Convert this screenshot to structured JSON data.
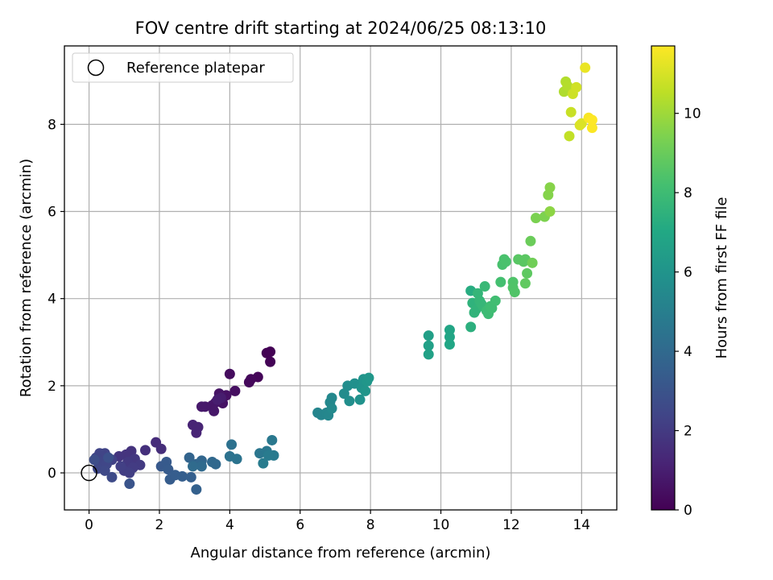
{
  "chart_data": {
    "type": "scatter",
    "title": "FOV centre drift starting at 2024/06/25 08:13:10",
    "xlabel": "Angular distance from reference (arcmin)",
    "ylabel": "Rotation from reference (arcmin)",
    "xlim": [
      -0.7,
      15.0
    ],
    "ylim": [
      -0.85,
      9.8
    ],
    "xticks": [
      "0",
      "2",
      "4",
      "6",
      "8",
      "10",
      "12",
      "14"
    ],
    "yticks": [
      "0",
      "2",
      "4",
      "6",
      "8"
    ],
    "grid": true,
    "legend": {
      "placement": "top-left",
      "entries": [
        "Reference platepar"
      ]
    },
    "reference_point": {
      "x": 0,
      "y": 0
    },
    "colorbar": {
      "label": "Hours from first FF file",
      "colormap": "viridis",
      "range": [
        0,
        11.7
      ],
      "ticks": [
        "0",
        "2",
        "4",
        "6",
        "8",
        "10"
      ]
    },
    "series": [
      {
        "points": [
          [
            5.05,
            2.75
          ],
          [
            5.15,
            2.78
          ],
          [
            5.15,
            2.55
          ],
          [
            4.8,
            2.2
          ],
          [
            4.6,
            2.15
          ],
          [
            4.55,
            2.08
          ],
          [
            4.0,
            2.27
          ],
          [
            4.15,
            1.88
          ],
          [
            3.9,
            1.78
          ],
          [
            3.8,
            1.6
          ],
          [
            3.7,
            1.82
          ],
          [
            3.6,
            1.62
          ],
          [
            3.5,
            1.55
          ],
          [
            3.55,
            1.42
          ],
          [
            3.3,
            1.52
          ],
          [
            3.2,
            1.52
          ],
          [
            3.75,
            1.72
          ],
          [
            3.65,
            1.68
          ],
          [
            2.95,
            1.1
          ],
          [
            3.1,
            1.05
          ],
          [
            3.05,
            0.92
          ],
          [
            1.9,
            0.7
          ],
          [
            2.05,
            0.55
          ],
          [
            1.6,
            0.52
          ],
          [
            1.2,
            0.5
          ],
          [
            1.05,
            0.42
          ],
          [
            0.85,
            0.38
          ],
          [
            1.3,
            0.32
          ],
          [
            1.1,
            0.25
          ],
          [
            1.45,
            0.18
          ],
          [
            1.25,
            0.12
          ],
          [
            1.0,
            0.05
          ],
          [
            1.15,
            0.0
          ],
          [
            0.9,
            0.15
          ],
          [
            0.65,
            0.3
          ],
          [
            0.45,
            0.45
          ],
          [
            0.3,
            0.45
          ],
          [
            0.2,
            0.35
          ],
          [
            0.35,
            0.25
          ],
          [
            0.5,
            0.2
          ],
          [
            0.25,
            0.1
          ],
          [
            0.45,
            0.05
          ],
          [
            0.65,
            -0.1
          ],
          [
            0.15,
            0.3
          ],
          [
            0.55,
            0.35
          ],
          [
            1.15,
            -0.25
          ],
          [
            2.05,
            0.15
          ],
          [
            2.2,
            0.25
          ],
          [
            2.25,
            0.08
          ],
          [
            2.3,
            -0.15
          ],
          [
            2.45,
            -0.05
          ],
          [
            2.65,
            -0.08
          ],
          [
            2.9,
            -0.1
          ],
          [
            3.05,
            -0.38
          ],
          [
            2.85,
            0.35
          ],
          [
            3.05,
            0.2
          ],
          [
            3.2,
            0.28
          ],
          [
            3.5,
            0.25
          ],
          [
            3.6,
            0.2
          ],
          [
            3.2,
            0.15
          ],
          [
            2.95,
            0.15
          ],
          [
            4.05,
            0.65
          ],
          [
            4.0,
            0.38
          ],
          [
            4.2,
            0.32
          ],
          [
            4.85,
            0.45
          ],
          [
            5.05,
            0.5
          ],
          [
            5.2,
            0.75
          ],
          [
            5.25,
            0.4
          ],
          [
            5.1,
            0.4
          ],
          [
            4.95,
            0.22
          ],
          [
            6.5,
            1.38
          ],
          [
            6.6,
            1.33
          ],
          [
            6.75,
            1.38
          ],
          [
            6.8,
            1.32
          ],
          [
            6.85,
            1.62
          ],
          [
            6.9,
            1.72
          ],
          [
            6.9,
            1.48
          ],
          [
            7.25,
            1.82
          ],
          [
            7.35,
            2.0
          ],
          [
            7.4,
            1.65
          ],
          [
            7.55,
            2.05
          ],
          [
            7.7,
            1.68
          ],
          [
            7.75,
            1.95
          ],
          [
            7.8,
            2.15
          ],
          [
            7.85,
            1.88
          ],
          [
            7.9,
            2.1
          ],
          [
            7.95,
            2.18
          ],
          [
            9.65,
            3.15
          ],
          [
            9.65,
            2.92
          ],
          [
            9.65,
            2.72
          ],
          [
            10.25,
            3.28
          ],
          [
            10.25,
            3.12
          ],
          [
            10.25,
            2.95
          ],
          [
            10.85,
            4.18
          ],
          [
            10.85,
            3.35
          ],
          [
            10.9,
            3.9
          ],
          [
            10.95,
            3.68
          ],
          [
            11.0,
            3.75
          ],
          [
            11.05,
            4.12
          ],
          [
            11.1,
            3.95
          ],
          [
            11.15,
            3.88
          ],
          [
            11.2,
            3.82
          ],
          [
            11.25,
            4.28
          ],
          [
            11.3,
            3.72
          ],
          [
            11.35,
            3.65
          ],
          [
            11.4,
            3.82
          ],
          [
            11.45,
            3.78
          ],
          [
            11.55,
            3.95
          ],
          [
            11.7,
            4.38
          ],
          [
            11.75,
            4.78
          ],
          [
            11.8,
            4.9
          ],
          [
            11.85,
            4.85
          ],
          [
            12.05,
            4.38
          ],
          [
            12.05,
            4.25
          ],
          [
            12.1,
            4.15
          ],
          [
            12.2,
            4.9
          ],
          [
            12.35,
            4.85
          ],
          [
            12.4,
            4.9
          ],
          [
            12.45,
            4.58
          ],
          [
            12.4,
            4.35
          ],
          [
            12.55,
            5.32
          ],
          [
            12.6,
            4.82
          ],
          [
            12.7,
            5.85
          ],
          [
            12.95,
            5.88
          ],
          [
            13.05,
            6.38
          ],
          [
            13.1,
            6.55
          ],
          [
            13.1,
            6.0
          ],
          [
            13.5,
            8.75
          ],
          [
            13.55,
            8.98
          ],
          [
            13.6,
            8.88
          ],
          [
            13.65,
            7.73
          ],
          [
            13.7,
            8.28
          ],
          [
            13.75,
            8.7
          ],
          [
            13.85,
            8.85
          ],
          [
            13.95,
            7.98
          ],
          [
            14.0,
            8.02
          ],
          [
            14.1,
            9.3
          ],
          [
            14.2,
            8.15
          ],
          [
            14.3,
            7.92
          ],
          [
            14.3,
            8.1
          ]
        ]
      }
    ]
  }
}
